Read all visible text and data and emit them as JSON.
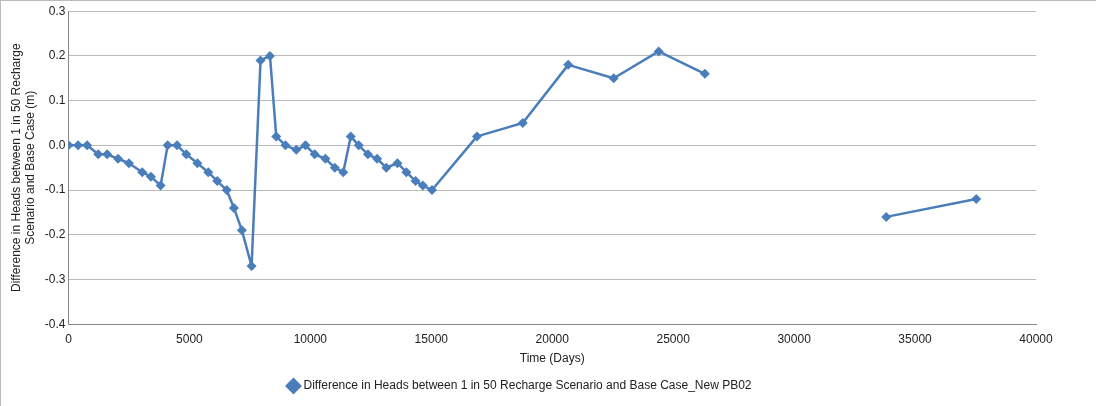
{
  "chart_data": {
    "type": "line",
    "xlabel": "Time (Days)",
    "ylabel": "Difference in Heads between 1 in 50 Recharge Scenario and Base Case (m)",
    "x": [
      0,
      400,
      770,
      1230,
      1600,
      2050,
      2500,
      3050,
      3410,
      3810,
      4100,
      4490,
      4870,
      5330,
      5780,
      6150,
      6540,
      6840,
      7170,
      7570,
      7940,
      8330,
      8590,
      8970,
      9420,
      9800,
      10180,
      10620,
      11010,
      11360,
      11670,
      12000,
      12380,
      12760,
      13140,
      13600,
      13970,
      14350,
      14650,
      15030,
      16890,
      18780,
      20660,
      22540,
      24400,
      26310,
      30000,
      33810,
      37530
    ],
    "series": [
      {
        "name": "Difference in Heads between 1 in 50 Recharge Scenario and Base Case_New PB02",
        "color": "#4a7ebb",
        "values": [
          0,
          0,
          0,
          -0.02,
          -0.02,
          -0.03,
          -0.04,
          -0.06,
          -0.07,
          -0.09,
          0,
          0,
          -0.02,
          -0.04,
          -0.06,
          -0.08,
          -0.1,
          -0.14,
          -0.19,
          -0.27,
          0.19,
          0.2,
          0.02,
          0,
          -0.01,
          0,
          -0.02,
          -0.03,
          -0.05,
          -0.06,
          0.02,
          0,
          -0.02,
          -0.03,
          -0.05,
          -0.04,
          -0.06,
          -0.08,
          -0.09,
          -0.1,
          0.02,
          0.05,
          0.18,
          0.15,
          0.21,
          0.16,
          null,
          -0.16,
          -0.12
        ]
      }
    ],
    "xlim": [
      0,
      40000
    ],
    "xticks": [
      0,
      5000,
      10000,
      15000,
      20000,
      25000,
      30000,
      35000,
      40000
    ],
    "ylim": [
      -0.4,
      0.3
    ],
    "yticks": [
      0.3,
      0.2,
      0.1,
      {
        "value": 0,
        "label": "0.0"
      },
      -0.1,
      -0.2,
      -0.3,
      -0.4
    ],
    "grid": "y",
    "legend": "bottom",
    "marker": "diamond",
    "line_style": "solid"
  }
}
